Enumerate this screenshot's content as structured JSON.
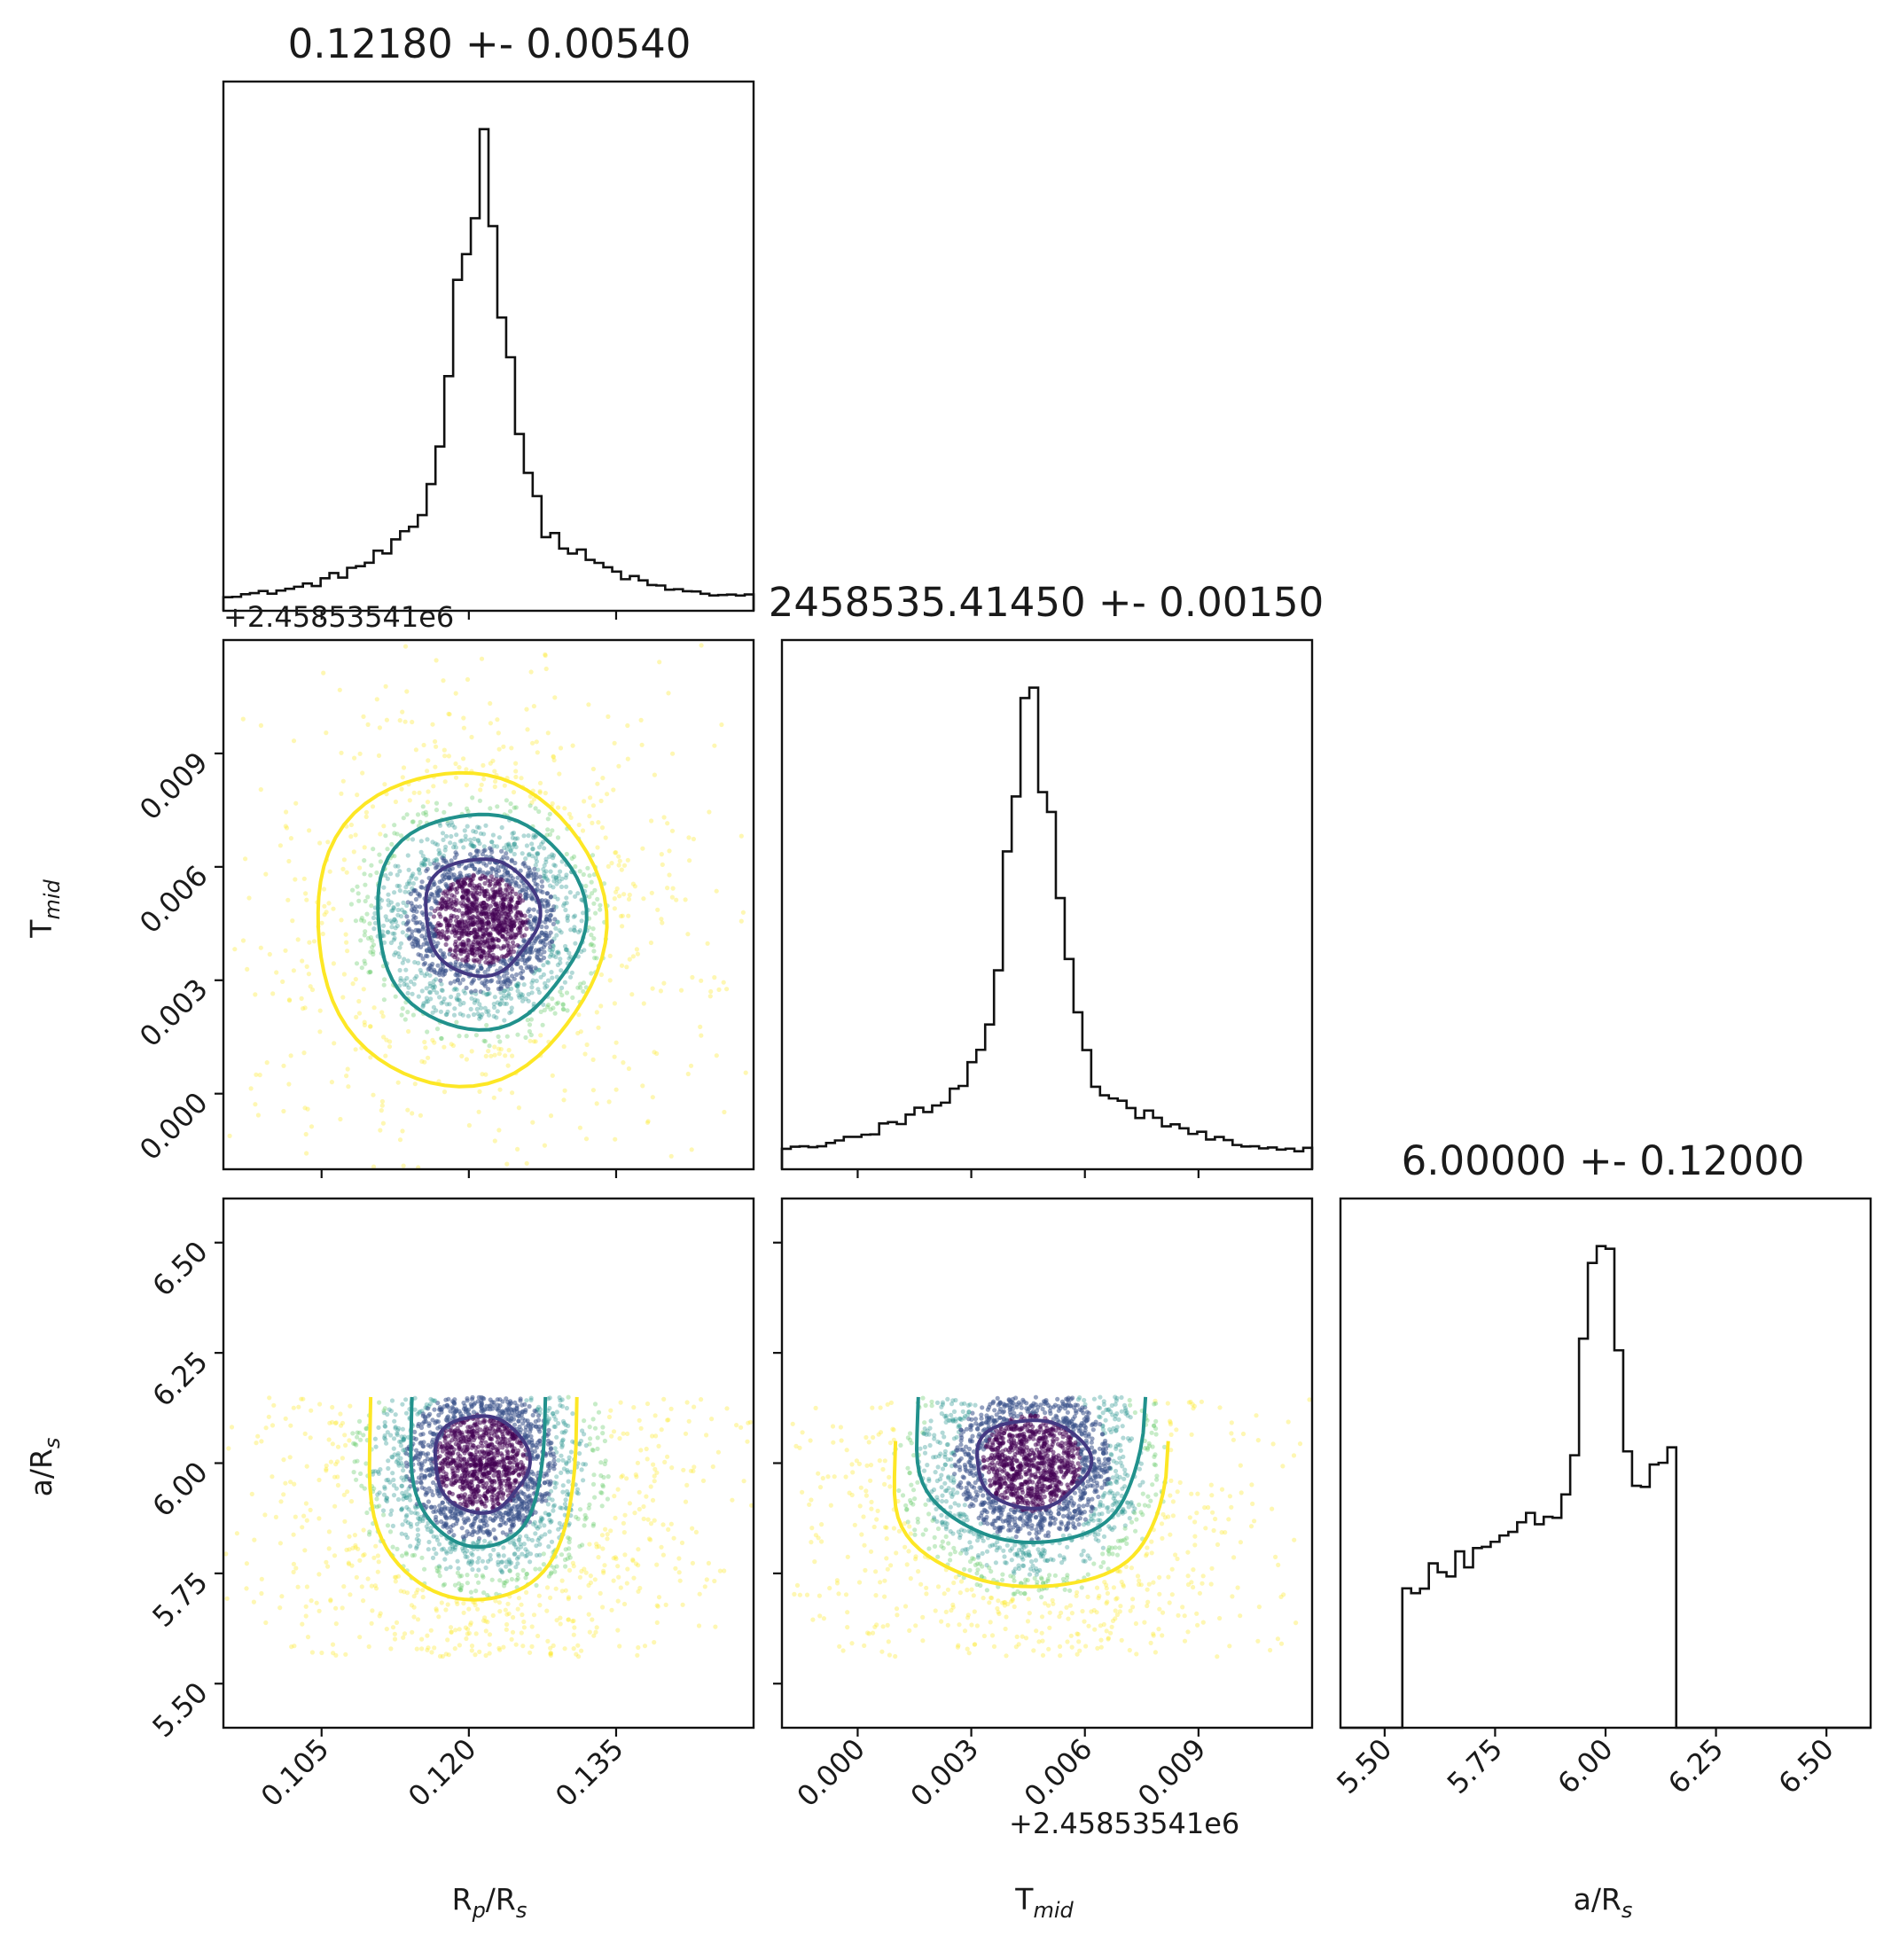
{
  "chart_data": {
    "type": "scatter",
    "subtype": "corner-plot",
    "parameters": [
      {
        "key": "rp",
        "label": "Rp/Rs",
        "range": [
          0.095,
          0.149
        ],
        "ticks": [
          "0.105",
          "0.120",
          "0.135"
        ],
        "tick_values": [
          0.105,
          0.12,
          0.135
        ],
        "offset": ""
      },
      {
        "key": "tmid",
        "label": "Tmid",
        "range": [
          -0.002,
          0.012
        ],
        "ticks": [
          "0.000",
          "0.003",
          "0.006",
          "0.009"
        ],
        "tick_values": [
          0.0,
          0.003,
          0.006,
          0.009
        ],
        "offset": "+2.45853541e6"
      },
      {
        "key": "ars",
        "label": "a/Rs",
        "range": [
          5.4,
          6.6
        ],
        "ticks": [
          "5.50",
          "5.75",
          "6.00",
          "6.25",
          "6.50"
        ],
        "tick_values": [
          5.5,
          5.75,
          6.0,
          6.25,
          6.5
        ],
        "offset": ""
      }
    ],
    "titles": [
      "0.12180 +- 0.00540",
      "2458535.41450 +- 0.00150",
      "6.00000 +- 0.12000"
    ],
    "axis_labels": {
      "x": [
        {
          "main": "R",
          "sub": "p",
          "mid": "/R",
          "sub2": "s"
        },
        {
          "main": "T",
          "sub": "mid",
          "mid": "",
          "sub2": ""
        },
        {
          "main": "a/R",
          "sub": "s",
          "mid": "",
          "sub2": ""
        }
      ],
      "y": [
        {
          "main": "T",
          "sub": "mid",
          "mid": "",
          "sub2": ""
        },
        {
          "main": "a/R",
          "sub": "s",
          "mid": "",
          "sub2": ""
        }
      ]
    },
    "histograms": [
      {
        "param": "rp",
        "peak": 0.1212,
        "core_sigma": 0.0025,
        "wing_sigma": 0.009,
        "baseline_fraction": 0.04
      },
      {
        "param": "tmid",
        "peak": 0.0046,
        "core_sigma": 0.00065,
        "wing_sigma": 0.0026,
        "baseline_fraction": 0.05
      },
      {
        "param": "ars",
        "peak": 5.995,
        "core_sigma": 0.055,
        "support": [
          5.54,
          6.15
        ],
        "shoulder_level": 0.25
      }
    ],
    "contour_levels": [
      "inner",
      "middle",
      "outer"
    ],
    "contour_colors": [
      "#443983",
      "#21918c",
      "#fde725"
    ],
    "point_colors": [
      "#440154",
      "#3b528b",
      "#21918c",
      "#5ec962",
      "#fde725"
    ],
    "grid": false,
    "legend": "none"
  }
}
